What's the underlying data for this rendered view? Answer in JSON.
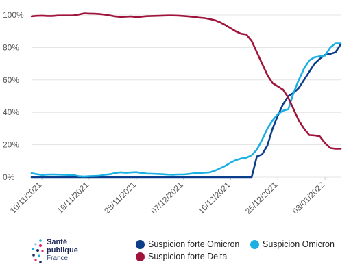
{
  "chart_data": {
    "type": "line",
    "y_ticks": [
      "0%",
      "20%",
      "40%",
      "60%",
      "80%",
      "100%"
    ],
    "ylim": [
      0,
      100
    ],
    "x_tick_labels": [
      "10/11/2021",
      "19/11/2021",
      "28/11/2021",
      "07/12/2021",
      "16/12/2021",
      "25/12/2021",
      "03/01/2022"
    ],
    "x": [
      "08/11/2021",
      "09/11/2021",
      "10/11/2021",
      "11/11/2021",
      "12/11/2021",
      "13/11/2021",
      "14/11/2021",
      "15/11/2021",
      "16/11/2021",
      "17/11/2021",
      "18/11/2021",
      "19/11/2021",
      "20/11/2021",
      "21/11/2021",
      "22/11/2021",
      "23/11/2021",
      "24/11/2021",
      "25/11/2021",
      "26/11/2021",
      "27/11/2021",
      "28/11/2021",
      "29/11/2021",
      "30/11/2021",
      "01/12/2021",
      "02/12/2021",
      "03/12/2021",
      "04/12/2021",
      "05/12/2021",
      "06/12/2021",
      "07/12/2021",
      "08/12/2021",
      "09/12/2021",
      "10/12/2021",
      "11/12/2021",
      "12/12/2021",
      "13/12/2021",
      "14/12/2021",
      "15/12/2021",
      "16/12/2021",
      "17/12/2021",
      "18/12/2021",
      "19/12/2021",
      "20/12/2021",
      "21/12/2021",
      "22/12/2021",
      "23/12/2021",
      "24/12/2021",
      "25/12/2021",
      "26/12/2021",
      "27/12/2021",
      "28/12/2021",
      "29/12/2021",
      "30/12/2021",
      "31/12/2021",
      "01/01/2022",
      "02/01/2022",
      "03/01/2022",
      "04/01/2022",
      "05/01/2022",
      "06/01/2022"
    ],
    "series": [
      {
        "name": "Suspicion forte Omicron",
        "color": "#0a3d8a",
        "values": [
          0,
          0,
          0,
          0,
          0,
          0,
          0,
          0,
          0,
          0,
          0,
          0,
          0,
          0,
          0,
          0,
          0,
          0,
          0,
          0,
          0,
          0,
          0,
          0,
          0,
          0,
          0,
          0,
          0,
          0,
          0,
          0,
          0,
          0,
          0,
          0,
          0,
          0,
          0,
          0,
          0,
          0,
          0,
          12.8,
          14,
          19.5,
          30,
          38,
          45,
          50,
          52,
          55,
          60,
          65,
          70,
          73,
          75.5,
          76,
          77,
          82
        ]
      },
      {
        "name": "Suspicion Omicron",
        "color": "#1ab0e3",
        "values": [
          2.5,
          1.8,
          1.4,
          1.6,
          1.7,
          1.6,
          1.5,
          1.4,
          1.3,
          0.6,
          0.4,
          0.6,
          0.7,
          0.9,
          1.5,
          1.8,
          2.6,
          3.0,
          2.7,
          2.9,
          3.1,
          2.6,
          2.2,
          2.1,
          2.0,
          1.8,
          1.6,
          1.5,
          1.7,
          1.7,
          2.0,
          2.4,
          2.6,
          2.8,
          3.0,
          4.0,
          5.5,
          7.0,
          9.0,
          10.5,
          11.5,
          12.0,
          13.5,
          17,
          23,
          30,
          35,
          39,
          41,
          42,
          52,
          60,
          67,
          72,
          74,
          74.5,
          75,
          80,
          82.5,
          82.5
        ]
      },
      {
        "name": "Suspicion forte Delta",
        "color": "#a0133b",
        "values": [
          99.2,
          99.5,
          99.6,
          99.4,
          99.4,
          99.7,
          99.7,
          99.7,
          99.8,
          100.3,
          101.0,
          100.9,
          100.8,
          100.6,
          100.2,
          99.7,
          99.1,
          98.8,
          99.0,
          99.1,
          98.7,
          99.0,
          99.3,
          99.4,
          99.5,
          99.6,
          99.7,
          99.7,
          99.6,
          99.4,
          99.1,
          98.8,
          98.4,
          98.1,
          97.5,
          96.8,
          95.5,
          93.8,
          91.8,
          89.9,
          88.5,
          88.0,
          84,
          77,
          70,
          63,
          58,
          56,
          54,
          49,
          42,
          35,
          30,
          26,
          25.8,
          25.2,
          21,
          18,
          17.5,
          17.5
        ]
      }
    ],
    "grid": true,
    "legend": "bottom-right"
  },
  "legend": {
    "items": [
      {
        "label": "Suspicion forte Omicron",
        "color": "#0a3d8a"
      },
      {
        "label": "Suspicion Omicron",
        "color": "#1ab0e3"
      },
      {
        "label": "Suspicion forte Delta",
        "color": "#a0133b"
      }
    ]
  },
  "logo": {
    "line1": "Santé",
    "line2": "publique",
    "line3": "France"
  }
}
